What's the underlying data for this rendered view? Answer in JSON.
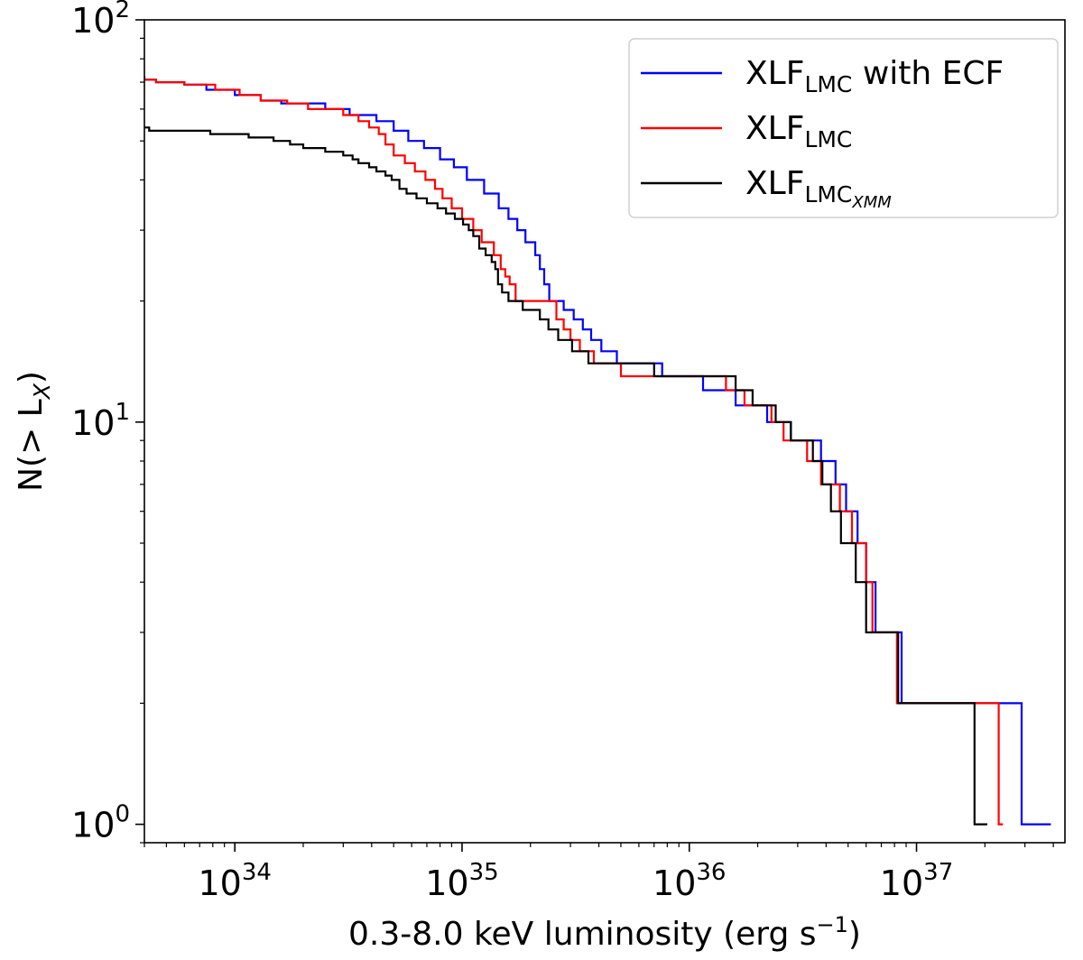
{
  "chart_data": {
    "type": "line",
    "step": true,
    "xlabel": "0.3-8.0 keV luminosity (erg s",
    "xlabel_sup": "−1",
    "xlabel_end": ")",
    "ylabel": "N(> L",
    "ylabel_sub": "X",
    "ylabel_end": ")",
    "x_scale": "log",
    "y_scale": "log",
    "xlim": [
      4e+33,
      4.5e+37
    ],
    "ylim": [
      0.9,
      100
    ],
    "x_ticks": [
      {
        "value": 1e+34,
        "base": "10",
        "exp": "34"
      },
      {
        "value": 1e+35,
        "base": "10",
        "exp": "35"
      },
      {
        "value": 1e+36,
        "base": "10",
        "exp": "36"
      },
      {
        "value": 1e+37,
        "base": "10",
        "exp": "37"
      }
    ],
    "y_ticks": [
      {
        "value": 1,
        "base": "10",
        "exp": "0"
      },
      {
        "value": 10,
        "base": "10",
        "exp": "1"
      },
      {
        "value": 100,
        "base": "10",
        "exp": "2"
      }
    ],
    "grid": false,
    "legend_position": "top-right",
    "series": [
      {
        "name": "XLF",
        "name_sub": "LMC",
        "name_suffix": " with ECF",
        "color": "#0000ff",
        "points": [
          [
            3.9e+33,
            72
          ],
          [
            4e+33,
            71
          ],
          [
            4.5e+33,
            70
          ],
          [
            6e+33,
            69
          ],
          [
            7.5e+33,
            67
          ],
          [
            1e+34,
            65
          ],
          [
            1.3e+34,
            63
          ],
          [
            1.6e+34,
            62
          ],
          [
            2.5e+34,
            60
          ],
          [
            3.2e+34,
            58
          ],
          [
            4.2e+34,
            56
          ],
          [
            5e+34,
            53
          ],
          [
            5.8e+34,
            50
          ],
          [
            6.8e+34,
            48
          ],
          [
            8e+34,
            45
          ],
          [
            9.2e+34,
            43
          ],
          [
            1.05e+35,
            40
          ],
          [
            1.25e+35,
            37
          ],
          [
            1.45e+35,
            34
          ],
          [
            1.6e+35,
            32
          ],
          [
            1.75e+35,
            30
          ],
          [
            1.9e+35,
            28
          ],
          [
            2.1e+35,
            26
          ],
          [
            2.2e+35,
            24
          ],
          [
            2.3e+35,
            22
          ],
          [
            2.42e+35,
            20
          ],
          [
            2.8e+35,
            19
          ],
          [
            3.1e+35,
            18
          ],
          [
            3.4e+35,
            17
          ],
          [
            3.7e+35,
            16
          ],
          [
            4.1e+35,
            15
          ],
          [
            4.8e+35,
            14
          ],
          [
            7.6e+35,
            13
          ],
          [
            1.15e+36,
            12
          ],
          [
            1.6e+36,
            11
          ],
          [
            2.2e+36,
            10
          ],
          [
            2.8e+36,
            9
          ],
          [
            3.8e+36,
            8
          ],
          [
            4.4e+36,
            7
          ],
          [
            4.9e+36,
            6
          ],
          [
            5.5e+36,
            5
          ],
          [
            6e+36,
            4
          ],
          [
            6.6e+36,
            3
          ],
          [
            8.6e+36,
            2
          ],
          [
            2.9e+37,
            1
          ],
          [
            3.9e+37,
            1
          ]
        ]
      },
      {
        "name": "XLF",
        "name_sub": "LMC",
        "name_suffix": "",
        "color": "#ff0000",
        "points": [
          [
            4e+33,
            71
          ],
          [
            4.5e+33,
            70
          ],
          [
            6e+33,
            69
          ],
          [
            8.2e+33,
            67
          ],
          [
            1.05e+34,
            65
          ],
          [
            1.3e+34,
            63
          ],
          [
            1.7e+34,
            62
          ],
          [
            2.1e+34,
            60
          ],
          [
            3e+34,
            58
          ],
          [
            3.5e+34,
            56
          ],
          [
            3.9e+34,
            54
          ],
          [
            4.3e+34,
            52
          ],
          [
            4.6e+34,
            49
          ],
          [
            5e+34,
            46
          ],
          [
            5.6e+34,
            44
          ],
          [
            6.2e+34,
            42
          ],
          [
            6.9e+34,
            40
          ],
          [
            7.6e+34,
            38
          ],
          [
            8.2e+34,
            36
          ],
          [
            9e+34,
            34
          ],
          [
            1e+35,
            32
          ],
          [
            1.12e+35,
            30
          ],
          [
            1.22e+35,
            28
          ],
          [
            1.38e+35,
            26
          ],
          [
            1.48e+35,
            24
          ],
          [
            1.55e+35,
            23
          ],
          [
            1.62e+35,
            22
          ],
          [
            1.72e+35,
            20
          ],
          [
            2.6e+35,
            18
          ],
          [
            2.8e+35,
            17
          ],
          [
            3e+35,
            16
          ],
          [
            3.3e+35,
            15
          ],
          [
            3.8e+35,
            14
          ],
          [
            5e+35,
            13
          ],
          [
            1.45e+36,
            12
          ],
          [
            1.75e+36,
            11
          ],
          [
            2.3e+36,
            10
          ],
          [
            2.6e+36,
            9
          ],
          [
            3.3e+36,
            8
          ],
          [
            3.8e+36,
            7
          ],
          [
            4.6e+36,
            6
          ],
          [
            5.2e+36,
            5
          ],
          [
            6e+36,
            4
          ],
          [
            6.4e+36,
            3
          ],
          [
            8.2e+36,
            2
          ],
          [
            2.3e+37,
            1
          ],
          [
            2.4e+37,
            1
          ]
        ]
      },
      {
        "name": "XLF",
        "name_sub": "LMC",
        "name_sub2": "XMM",
        "name_suffix": "",
        "color": "#000000",
        "points": [
          [
            2.85e+33,
            55
          ],
          [
            3.5e+33,
            54
          ],
          [
            4.2e+33,
            53
          ],
          [
            7.8e+33,
            52
          ],
          [
            1.15e+34,
            51
          ],
          [
            1.48e+34,
            50
          ],
          [
            1.75e+34,
            49
          ],
          [
            2e+34,
            48
          ],
          [
            2.5e+34,
            47
          ],
          [
            3e+34,
            46
          ],
          [
            3.3e+34,
            45
          ],
          [
            3.5e+34,
            44
          ],
          [
            3.9e+34,
            43
          ],
          [
            4.2e+34,
            42
          ],
          [
            4.6e+34,
            41
          ],
          [
            4.9e+34,
            40
          ],
          [
            5.3e+34,
            38
          ],
          [
            5.7e+34,
            37
          ],
          [
            6.3e+34,
            36
          ],
          [
            7e+34,
            35
          ],
          [
            7.8e+34,
            34
          ],
          [
            8.5e+34,
            33
          ],
          [
            9.3e+34,
            32
          ],
          [
            1.01e+35,
            31
          ],
          [
            1.07e+35,
            30
          ],
          [
            1.12e+35,
            29
          ],
          [
            1.19e+35,
            27
          ],
          [
            1.27e+35,
            26
          ],
          [
            1.35e+35,
            25
          ],
          [
            1.4e+35,
            24
          ],
          [
            1.44e+35,
            22
          ],
          [
            1.5e+35,
            21
          ],
          [
            1.6e+35,
            20
          ],
          [
            1.85e+35,
            19
          ],
          [
            2.2e+35,
            18
          ],
          [
            2.4e+35,
            17
          ],
          [
            2.65e+35,
            16
          ],
          [
            3.05e+35,
            15
          ],
          [
            3.6e+35,
            14
          ],
          [
            7e+35,
            13
          ],
          [
            1.6e+36,
            12
          ],
          [
            1.9e+36,
            11
          ],
          [
            2.4e+36,
            10
          ],
          [
            2.8e+36,
            9
          ],
          [
            3.5e+36,
            8
          ],
          [
            3.85e+36,
            7
          ],
          [
            4.2e+36,
            6
          ],
          [
            4.65e+36,
            5
          ],
          [
            5.4e+36,
            4
          ],
          [
            6e+36,
            3
          ],
          [
            8.3e+36,
            2
          ],
          [
            1.8e+37,
            1
          ],
          [
            2.05e+37,
            1
          ]
        ]
      }
    ]
  }
}
